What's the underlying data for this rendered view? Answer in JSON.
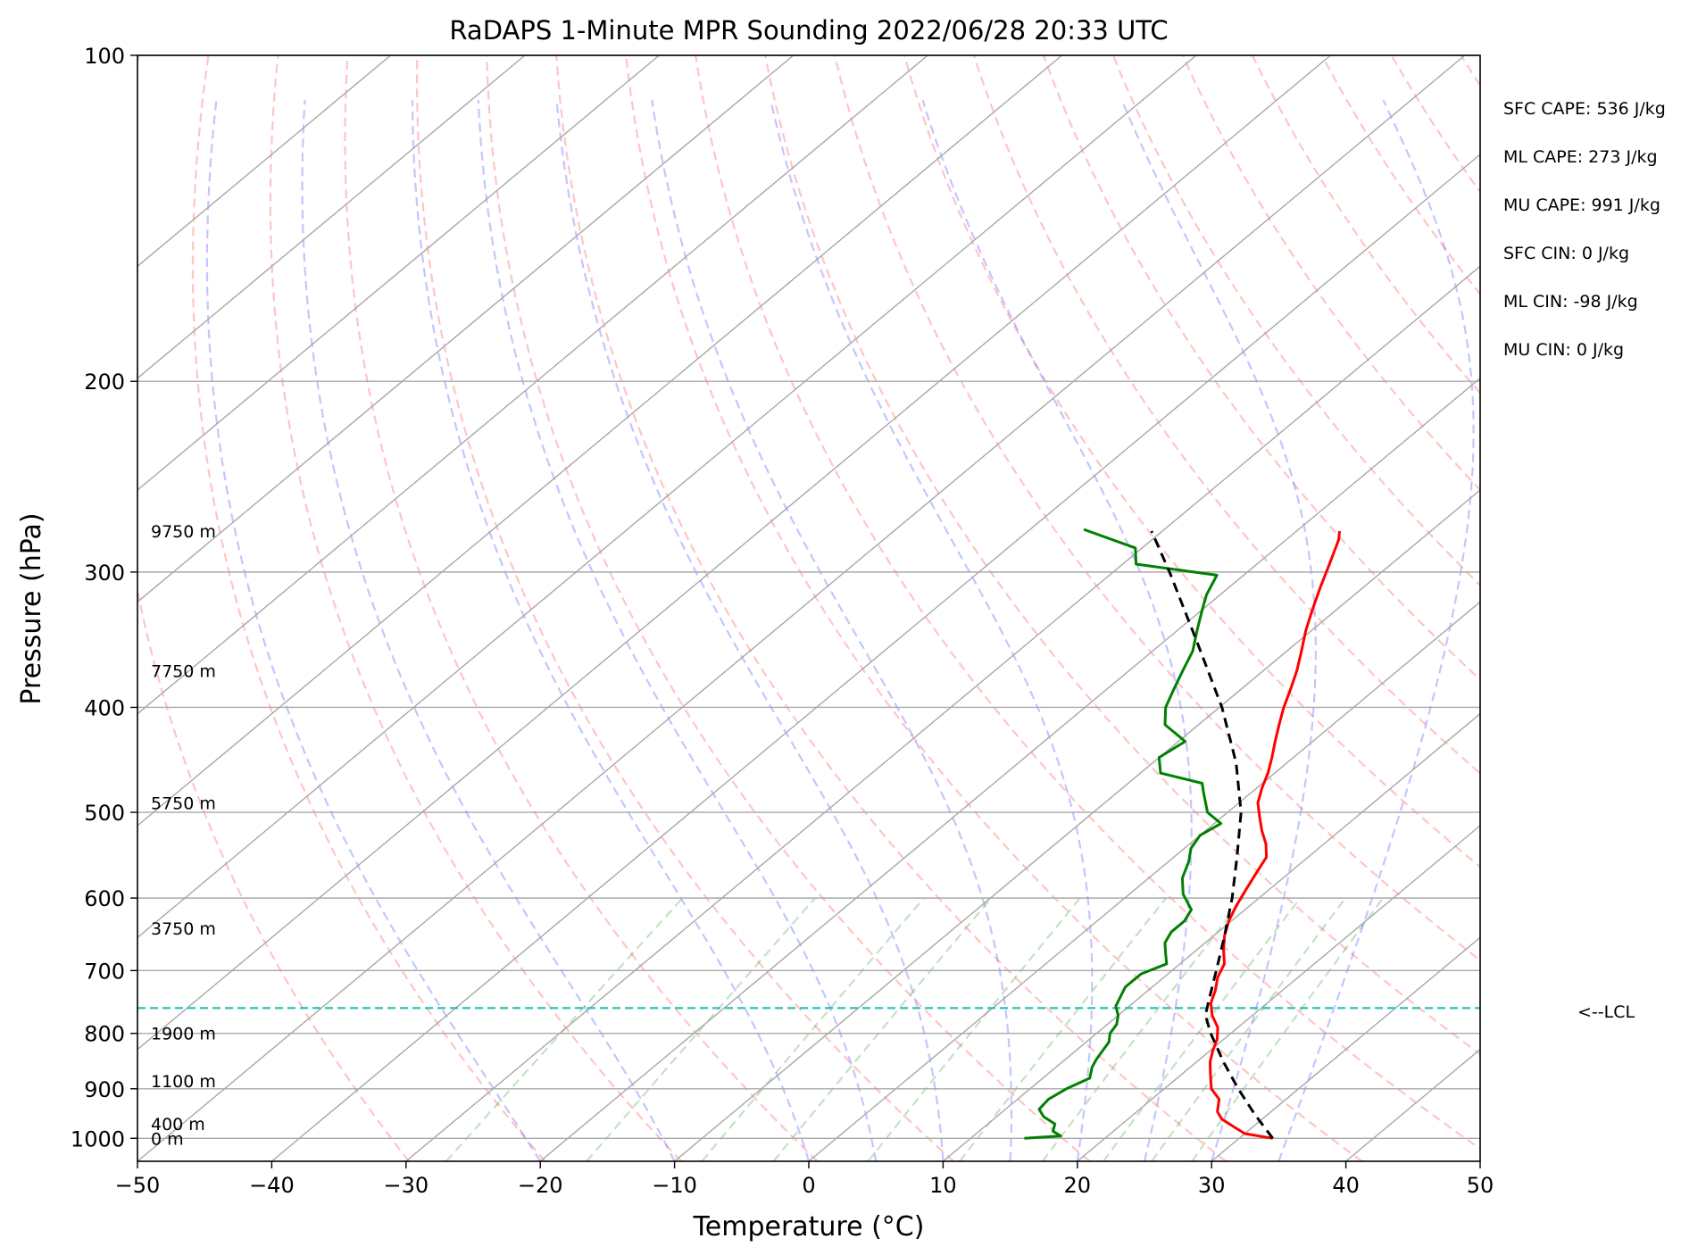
{
  "chart_data": {
    "type": "line",
    "title": "RaDAPS 1-Minute MPR Sounding 2022/06/28 20:33 UTC",
    "xlabel": "Temperature (°C)",
    "ylabel": "Pressure (hPa)",
    "xlim": [
      -50,
      50
    ],
    "ylim": [
      1050,
      100
    ],
    "y_scale": "log",
    "skew": true,
    "grid": true,
    "x_ticks": [
      "−50",
      "−40",
      "−30",
      "−20",
      "−10",
      "0",
      "10",
      "20",
      "30",
      "40",
      "50"
    ],
    "y_ticks": [
      {
        "p": 100,
        "label": "100"
      },
      {
        "p": 200,
        "label": "200"
      },
      {
        "p": 300,
        "label": "300"
      },
      {
        "p": 400,
        "label": "400"
      },
      {
        "p": 500,
        "label": "500"
      },
      {
        "p": 600,
        "label": "600"
      },
      {
        "p": 700,
        "label": "700"
      },
      {
        "p": 800,
        "label": "800"
      },
      {
        "p": 900,
        "label": "900"
      },
      {
        "p": 1000,
        "label": "1000"
      }
    ],
    "height_labels": [
      {
        "p": 275,
        "label": "9750 m"
      },
      {
        "p": 370,
        "label": "7750 m"
      },
      {
        "p": 490,
        "label": "5750 m"
      },
      {
        "p": 640,
        "label": "3750 m"
      },
      {
        "p": 800,
        "label": "1900 m"
      },
      {
        "p": 885,
        "label": "1100 m"
      },
      {
        "p": 970,
        "label": "400 m"
      },
      {
        "p": 1000,
        "label": "0 m"
      }
    ],
    "lcl": {
      "p": 758,
      "label": "<--LCL"
    },
    "annotations": [
      "SFC CAPE: 536 J/kg",
      "ML CAPE: 273 J/kg",
      "MU CAPE: 991 J/kg",
      "SFC CIN: 0 J/kg",
      "ML CIN: -98 J/kg",
      "MU CIN: 0 J/kg"
    ],
    "series": [
      {
        "role": "temperature",
        "color": "#ff0000",
        "points": [
          [
            1000,
            32.5
          ],
          [
            990,
            30.0
          ],
          [
            975,
            28.5
          ],
          [
            960,
            27.0
          ],
          [
            945,
            26.0
          ],
          [
            920,
            25.0
          ],
          [
            900,
            23.5
          ],
          [
            870,
            22.0
          ],
          [
            850,
            21.0
          ],
          [
            830,
            20.2
          ],
          [
            810,
            19.5
          ],
          [
            790,
            18.5
          ],
          [
            770,
            17.0
          ],
          [
            750,
            15.8
          ],
          [
            730,
            15.0
          ],
          [
            710,
            14.0
          ],
          [
            690,
            13.3
          ],
          [
            670,
            12.0
          ],
          [
            650,
            10.8
          ],
          [
            630,
            9.8
          ],
          [
            610,
            9.0
          ],
          [
            590,
            8.3
          ],
          [
            570,
            7.6
          ],
          [
            550,
            6.9
          ],
          [
            535,
            5.7
          ],
          [
            520,
            4.2
          ],
          [
            505,
            2.8
          ],
          [
            490,
            1.4
          ],
          [
            475,
            0.4
          ],
          [
            460,
            -0.5
          ],
          [
            445,
            -1.6
          ],
          [
            430,
            -2.8
          ],
          [
            415,
            -4.0
          ],
          [
            400,
            -5.2
          ],
          [
            385,
            -6.3
          ],
          [
            370,
            -7.5
          ],
          [
            355,
            -8.9
          ],
          [
            340,
            -10.4
          ],
          [
            325,
            -11.8
          ],
          [
            310,
            -13.2
          ],
          [
            295,
            -14.6
          ],
          [
            280,
            -16.1
          ],
          [
            275,
            -16.8
          ]
        ]
      },
      {
        "role": "dewpoint",
        "color": "#008000",
        "points": [
          [
            1000,
            14.0
          ],
          [
            995,
            16.5
          ],
          [
            985,
            15.5
          ],
          [
            970,
            15.0
          ],
          [
            955,
            13.5
          ],
          [
            940,
            12.5
          ],
          [
            920,
            12.3
          ],
          [
            900,
            12.7
          ],
          [
            880,
            13.5
          ],
          [
            860,
            12.7
          ],
          [
            845,
            12.3
          ],
          [
            830,
            12.0
          ],
          [
            815,
            11.7
          ],
          [
            800,
            11.0
          ],
          [
            785,
            10.7
          ],
          [
            770,
            10.0
          ],
          [
            755,
            9.0
          ],
          [
            740,
            8.5
          ],
          [
            725,
            8.0
          ],
          [
            705,
            8.0
          ],
          [
            690,
            9.0
          ],
          [
            675,
            8.0
          ],
          [
            660,
            7.0
          ],
          [
            645,
            6.5
          ],
          [
            630,
            6.5
          ],
          [
            615,
            6.0
          ],
          [
            595,
            4.0
          ],
          [
            575,
            2.5
          ],
          [
            555,
            1.5
          ],
          [
            540,
            0.5
          ],
          [
            525,
            0.0
          ],
          [
            512,
            0.5
          ],
          [
            500,
            -1.5
          ],
          [
            480,
            -3.5
          ],
          [
            470,
            -4.5
          ],
          [
            460,
            -8.5
          ],
          [
            445,
            -10.0
          ],
          [
            430,
            -9.5
          ],
          [
            415,
            -12.5
          ],
          [
            400,
            -14.0
          ],
          [
            385,
            -15.0
          ],
          [
            370,
            -16.0
          ],
          [
            355,
            -17.0
          ],
          [
            340,
            -18.5
          ],
          [
            325,
            -20.0
          ],
          [
            315,
            -21.0
          ],
          [
            302,
            -22.0
          ],
          [
            295,
            -29.0
          ],
          [
            285,
            -30.5
          ],
          [
            274,
            -36.0
          ]
        ]
      },
      {
        "role": "parcel",
        "color": "#000000",
        "dashed": true,
        "points": [
          [
            1000,
            32.5
          ],
          [
            950,
            29.0
          ],
          [
            900,
            25.5
          ],
          [
            850,
            22.0
          ],
          [
            800,
            18.5
          ],
          [
            770,
            16.5
          ],
          [
            750,
            15.6
          ],
          [
            700,
            13.3
          ],
          [
            650,
            10.8
          ],
          [
            600,
            8.0
          ],
          [
            550,
            4.7
          ],
          [
            500,
            1.0
          ],
          [
            450,
            -3.8
          ],
          [
            400,
            -9.8
          ],
          [
            350,
            -17.2
          ],
          [
            300,
            -25.8
          ],
          [
            275,
            -30.8
          ]
        ]
      }
    ]
  }
}
